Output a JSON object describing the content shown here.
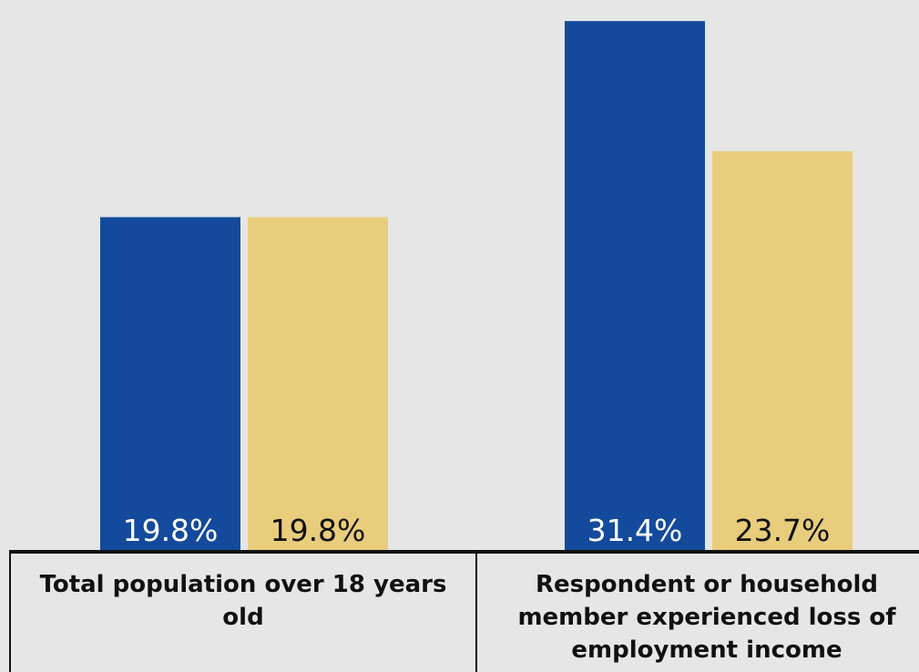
{
  "colors": {
    "background": "#e6e6e6",
    "series_blue": "#134a9b",
    "series_gold": "#e8cd7c",
    "label_on_blue": "#ffffff",
    "label_on_gold": "#111111",
    "axis": "#111111"
  },
  "chart_data": {
    "type": "bar",
    "title": "",
    "xlabel": "",
    "ylabel": "",
    "ylim": [
      0,
      32
    ],
    "grid": false,
    "legend": "none",
    "categories": [
      "Total population over 18 years old",
      "Respondent or household member experienced loss of employment income"
    ],
    "series": [
      {
        "values": [
          19.8,
          31.4
        ],
        "labels": [
          "19.8%",
          "31.4%"
        ],
        "color": "#134a9b"
      },
      {
        "values": [
          19.8,
          23.7
        ],
        "labels": [
          "19.8%",
          "23.7%"
        ],
        "color": "#e8cd7c"
      }
    ]
  }
}
